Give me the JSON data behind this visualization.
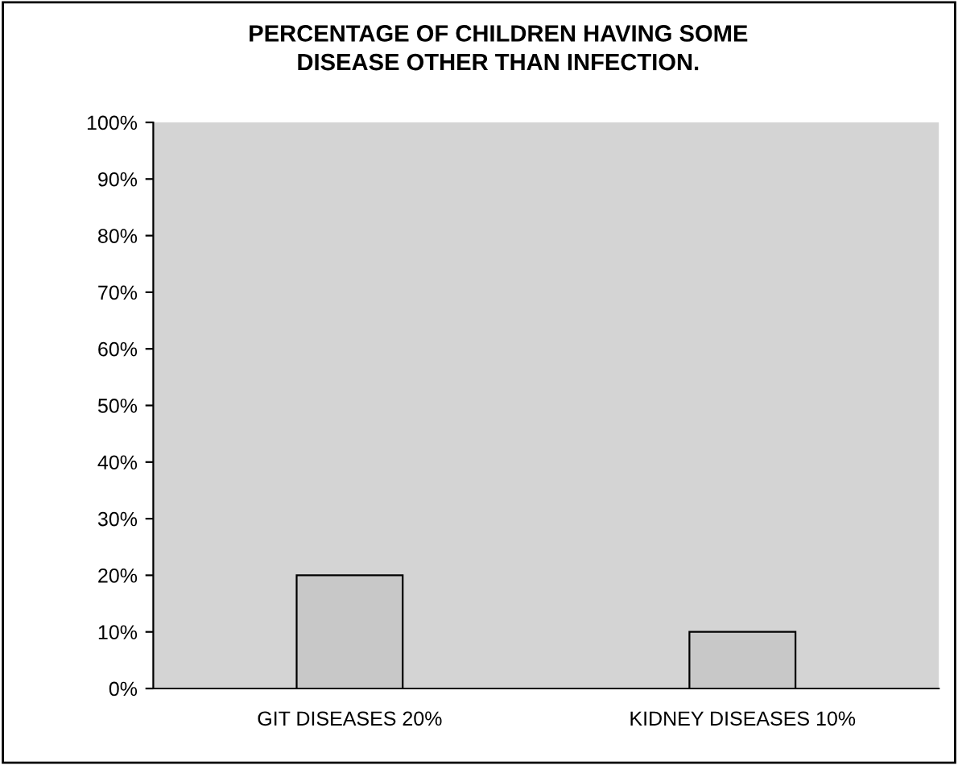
{
  "chart_data": {
    "type": "bar",
    "title": "PERCENTAGE OF CHILDREN HAVING SOME\nDISEASE OTHER THAN INFECTION.",
    "categories": [
      "GIT DISEASES 20%",
      "KIDNEY DISEASES 10%"
    ],
    "values": [
      20,
      10
    ],
    "color": "#c8c8c8",
    "ylim": [
      0,
      100
    ],
    "yticks": [
      {
        "value": 0,
        "label": "0%"
      },
      {
        "value": 10,
        "label": "10%"
      },
      {
        "value": 20,
        "label": "20%"
      },
      {
        "value": 30,
        "label": "30%"
      },
      {
        "value": 40,
        "label": "40%"
      },
      {
        "value": 50,
        "label": "50%"
      },
      {
        "value": 60,
        "label": "60%"
      },
      {
        "value": 70,
        "label": "70%"
      },
      {
        "value": 80,
        "label": "80%"
      },
      {
        "value": 90,
        "label": "90%"
      },
      {
        "value": 100,
        "label": "100%"
      }
    ],
    "grid": false
  }
}
